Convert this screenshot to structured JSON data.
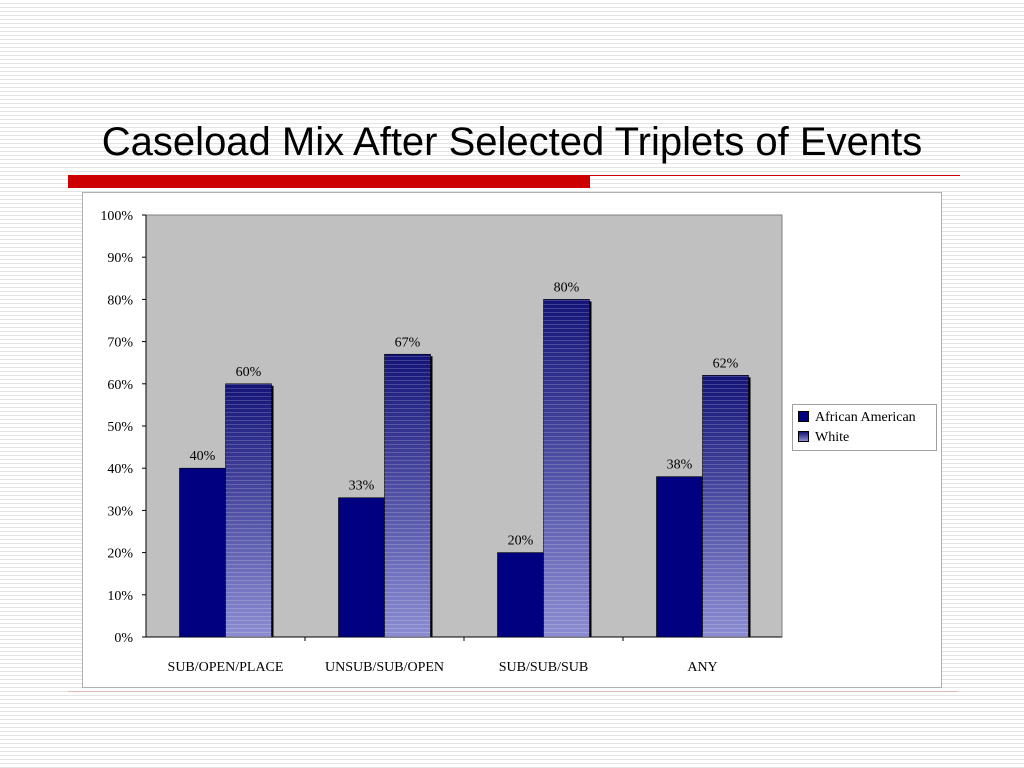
{
  "slide": {
    "title": "Caseload Mix After Selected Triplets of Events"
  },
  "colors": {
    "african_american": "#000080",
    "white_top": "#141478",
    "white_bottom": "#8c8cd2",
    "plot_background": "#c0c0c0",
    "title_rule": "#cc0000"
  },
  "chart_data": {
    "type": "bar",
    "title": "",
    "xlabel": "",
    "ylabel": "",
    "ylim": [
      0,
      100
    ],
    "yticks": [
      "0%",
      "10%",
      "20%",
      "30%",
      "40%",
      "50%",
      "60%",
      "70%",
      "80%",
      "90%",
      "100%"
    ],
    "categories": [
      "SUB/OPEN/PLACE",
      "UNSUB/SUB/OPEN",
      "SUB/SUB/SUB",
      "ANY"
    ],
    "series": [
      {
        "name": "African American",
        "values": [
          40,
          33,
          20,
          38
        ],
        "labels": [
          "40%",
          "33%",
          "20%",
          "38%"
        ]
      },
      {
        "name": "White",
        "values": [
          60,
          67,
          80,
          62
        ],
        "labels": [
          "60%",
          "67%",
          "80%",
          "62%"
        ]
      }
    ],
    "grid": false,
    "legend": "right"
  }
}
